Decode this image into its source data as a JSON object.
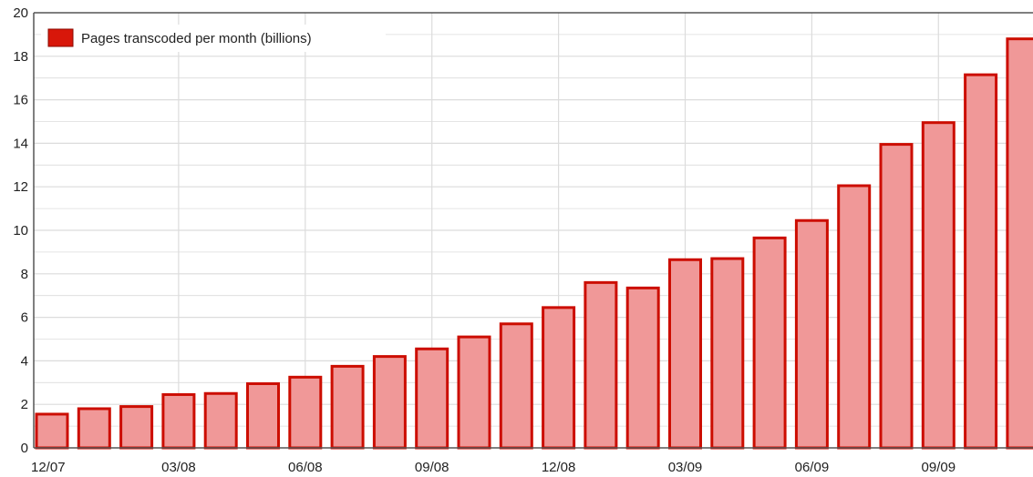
{
  "chart_data": {
    "type": "bar",
    "series": [
      {
        "name": "Pages transcoded per month (billions)",
        "values": [
          1.55,
          1.8,
          1.9,
          2.45,
          2.5,
          2.95,
          3.25,
          3.75,
          4.2,
          4.55,
          5.1,
          5.7,
          6.45,
          7.6,
          7.35,
          8.65,
          8.7,
          9.65,
          10.45,
          12.05,
          13.95,
          14.95,
          17.15,
          18.8
        ]
      }
    ],
    "categories": [
      "12/07",
      "01/08",
      "02/08",
      "03/08",
      "04/08",
      "05/08",
      "06/08",
      "07/08",
      "08/08",
      "09/08",
      "10/08",
      "11/08",
      "12/08",
      "01/09",
      "02/09",
      "03/09",
      "04/09",
      "05/09",
      "06/09",
      "07/09",
      "08/09",
      "09/09",
      "10/09",
      "11/09"
    ],
    "x_tick_labels": [
      "12/07",
      "03/08",
      "06/08",
      "09/08",
      "12/08",
      "03/09",
      "06/09",
      "09/09"
    ],
    "y_tick_labels": [
      "0",
      "2",
      "4",
      "6",
      "8",
      "10",
      "12",
      "14",
      "16",
      "18",
      "20"
    ],
    "ylim": [
      0,
      20
    ],
    "grid": true,
    "legend_position": "top-left",
    "colors": {
      "bar_fill": "#f09898",
      "bar_stroke": "#cc0d00",
      "legend_swatch": "#d8170a",
      "grid": "#dcdcdc",
      "axis": "#555555"
    }
  }
}
